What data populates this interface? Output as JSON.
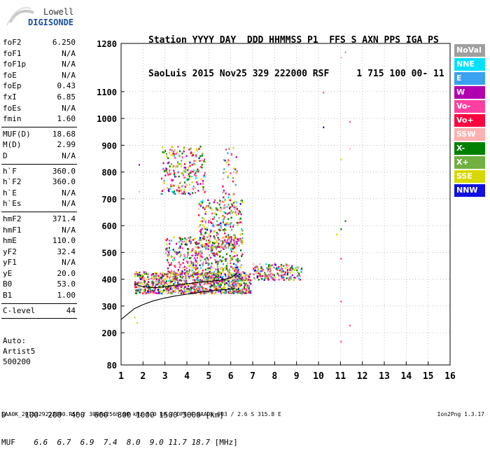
{
  "logo": {
    "line1": "Lowell",
    "line2": "DIGISONDE"
  },
  "header": {
    "line1": "Station YYYY DAY  DDD HHMMSS P1  FFS S AXN PPS IGA PS",
    "line2": "SaoLuis 2015 Nov25 329 222000 RSF     1 715 100 00- 11"
  },
  "params": [
    [
      {
        "k": "foF2",
        "v": "6.250"
      },
      {
        "k": "foF1",
        "v": "N/A"
      },
      {
        "k": "foF1p",
        "v": "N/A"
      },
      {
        "k": "foE",
        "v": "N/A"
      },
      {
        "k": "foEp",
        "v": "0.43"
      },
      {
        "k": "fxI",
        "v": "6.85"
      },
      {
        "k": "foEs",
        "v": "N/A"
      },
      {
        "k": "fmin",
        "v": "1.60"
      }
    ],
    [
      {
        "k": "MUF(D)",
        "v": "18.68"
      },
      {
        "k": "M(D)",
        "v": "2.99"
      },
      {
        "k": "D",
        "v": "N/A"
      }
    ],
    [
      {
        "k": "h`F",
        "v": "360.0"
      },
      {
        "k": "h`F2",
        "v": "360.0"
      },
      {
        "k": "h`E",
        "v": "N/A"
      },
      {
        "k": "h`Es",
        "v": "N/A"
      }
    ],
    [
      {
        "k": "hmF2",
        "v": "371.4"
      },
      {
        "k": "hmF1",
        "v": "N/A"
      },
      {
        "k": "hmE",
        "v": "110.0"
      },
      {
        "k": "yF2",
        "v": "32.4"
      },
      {
        "k": "yF1",
        "v": "N/A"
      },
      {
        "k": "yE",
        "v": "20.0"
      },
      {
        "k": "B0",
        "v": "53.0"
      },
      {
        "k": "B1",
        "v": "1.00"
      }
    ],
    [
      {
        "k": "C-level",
        "v": "44"
      }
    ]
  ],
  "auto": {
    "line1": "Auto:",
    "line2": "Artist5",
    "line3": "500200"
  },
  "legend": [
    {
      "label": "NoVal",
      "color": "#a0a0a0"
    },
    {
      "label": "NNE",
      "color": "#00e0ff"
    },
    {
      "label": "E",
      "color": "#3aa0f0"
    },
    {
      "label": "W",
      "color": "#b000b0"
    },
    {
      "label": "Vo-",
      "color": "#ff40a0"
    },
    {
      "label": "Vo+",
      "color": "#ff0040"
    },
    {
      "label": "SSW",
      "color": "#ffb0b0"
    },
    {
      "label": "X-",
      "color": "#008000"
    },
    {
      "label": "X+",
      "color": "#70b040"
    },
    {
      "label": "SSE",
      "color": "#d8d800"
    },
    {
      "label": "NNW",
      "color": "#1010e0"
    }
  ],
  "muf_table": {
    "d_label": "D",
    "d_values": [
      "100",
      "200",
      "400",
      "600",
      "800",
      "1000",
      "1500",
      "3000"
    ],
    "d_unit": "[km]",
    "muf_label": "MUF",
    "muf_values": [
      "6.6",
      "6.7",
      "6.9",
      "7.4",
      "8.0",
      "9.0",
      "11.7",
      "18.7"
    ],
    "muf_unit": "[MHz]"
  },
  "footer": "SAA0K_2015329222000.RSF / 300fx256h 50 kHz 5.0 km / DPS-4 SAA0K 903 / 2.6 S 315.8 E",
  "version": "Ion2Png 1.3.17",
  "chart_data": {
    "type": "scatter",
    "x_range": [
      1,
      16
    ],
    "y_range": [
      80,
      1280
    ],
    "x_ticks": [
      "1",
      "2",
      "3",
      "4",
      "5",
      "6",
      "7",
      "8",
      "9",
      "10",
      "11",
      "12",
      "13",
      "14",
      "15",
      "16"
    ],
    "y_ticks": [
      {
        "v": 80,
        "label": "80"
      },
      {
        "v": 200,
        "label": "200"
      },
      {
        "v": 300,
        "label": "300"
      },
      {
        "v": 400,
        "label": "400"
      },
      {
        "v": 500,
        "label": "500"
      },
      {
        "v": 600,
        "label": "600"
      },
      {
        "v": 700,
        "label": "700"
      },
      {
        "v": 800,
        "label": "800"
      },
      {
        "v": 900,
        "label": "900"
      },
      {
        "v": 1000,
        "label": "1000"
      },
      {
        "v": 1100,
        "label": "1100"
      },
      {
        "v": 1280,
        "label": "1280"
      }
    ],
    "grid": "dotted",
    "clusters": [
      {
        "x0": 1.6,
        "x1": 6.9,
        "y0": 350,
        "y1": 430,
        "n": 900
      },
      {
        "x0": 3.0,
        "x1": 6.5,
        "y0": 420,
        "y1": 560,
        "n": 450
      },
      {
        "x0": 4.5,
        "x1": 6.5,
        "y0": 520,
        "y1": 700,
        "n": 260
      },
      {
        "x0": 2.8,
        "x1": 4.8,
        "y0": 720,
        "y1": 900,
        "n": 220
      },
      {
        "x0": 5.6,
        "x1": 6.3,
        "y0": 650,
        "y1": 900,
        "n": 60
      },
      {
        "x0": 7.0,
        "x1": 9.2,
        "y0": 400,
        "y1": 460,
        "n": 180
      }
    ],
    "isolated_points": [
      {
        "x": 1.8,
        "y": 830
      },
      {
        "x": 1.8,
        "y": 730
      },
      {
        "x": 1.7,
        "y": 240
      },
      {
        "x": 1.6,
        "y": 260
      },
      {
        "x": 10.2,
        "y": 1100
      },
      {
        "x": 10.2,
        "y": 970
      },
      {
        "x": 11.0,
        "y": 1230
      },
      {
        "x": 11.2,
        "y": 1250
      },
      {
        "x": 11.4,
        "y": 990
      },
      {
        "x": 11.4,
        "y": 890
      },
      {
        "x": 11.0,
        "y": 850
      },
      {
        "x": 11.0,
        "y": 590
      },
      {
        "x": 11.2,
        "y": 620
      },
      {
        "x": 11.0,
        "y": 480
      },
      {
        "x": 10.8,
        "y": 570
      },
      {
        "x": 11.4,
        "y": 230
      },
      {
        "x": 11.0,
        "y": 170
      },
      {
        "x": 11.0,
        "y": 320
      }
    ],
    "curves": [
      {
        "name": "profile",
        "points": [
          [
            1.0,
            250
          ],
          [
            1.3,
            270
          ],
          [
            1.6,
            290
          ],
          [
            2.0,
            305
          ],
          [
            2.5,
            320
          ],
          [
            3.0,
            330
          ],
          [
            3.5,
            338
          ],
          [
            4.0,
            344
          ],
          [
            4.5,
            350
          ],
          [
            5.0,
            356
          ],
          [
            5.5,
            360
          ],
          [
            6.0,
            363
          ],
          [
            6.2,
            366
          ]
        ]
      },
      {
        "name": "trace",
        "points": [
          [
            1.6,
            382
          ],
          [
            2.0,
            372
          ],
          [
            2.5,
            368
          ],
          [
            3.0,
            372
          ],
          [
            3.5,
            378
          ],
          [
            4.0,
            383
          ],
          [
            4.5,
            388
          ],
          [
            5.0,
            392
          ],
          [
            5.5,
            396
          ],
          [
            6.0,
            405
          ],
          [
            6.25,
            420
          ]
        ]
      }
    ]
  }
}
